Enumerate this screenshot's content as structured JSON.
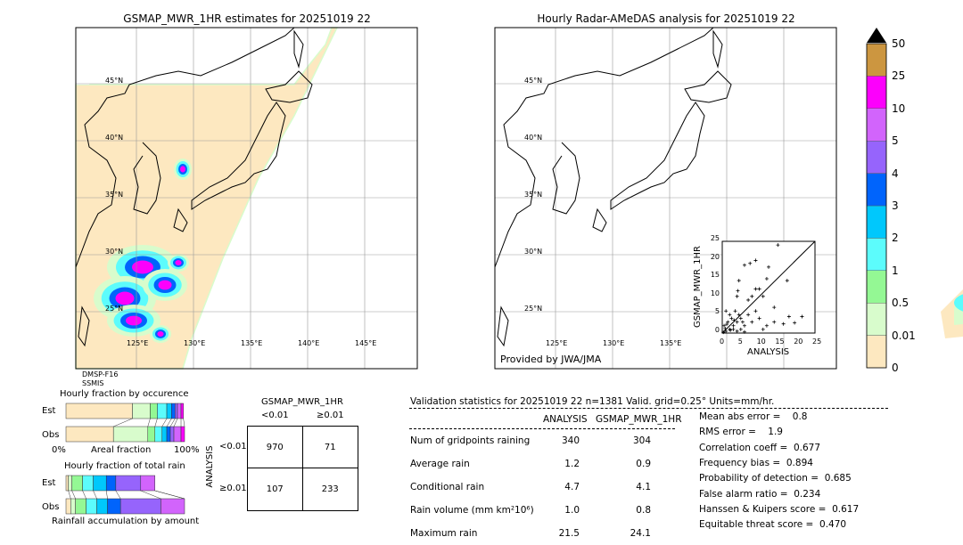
{
  "left_map": {
    "title": "GSMAP_MWR_1HR estimates for 20251019 22",
    "sensor_line1": "DMSP-F16",
    "sensor_line2": "SSMIS"
  },
  "right_map": {
    "title": "Hourly Radar-AMeDAS analysis for 20251019 22",
    "credit": "Provided by JWA/JMA"
  },
  "lat_labels": [
    "45°N",
    "40°N",
    "35°N",
    "30°N",
    "25°N"
  ],
  "lon_labels": [
    "125°E",
    "130°E",
    "135°E",
    "140°E",
    "145°E"
  ],
  "colorbar": {
    "ticks": [
      "0",
      "0.01",
      "0.5",
      "1",
      "2",
      "3",
      "4",
      "5",
      "10",
      "25",
      "50"
    ],
    "colors": [
      "#fde8c0",
      "#d8fccc",
      "#94f894",
      "#5cfcfc",
      "#00c8fc",
      "#0064fc",
      "#9664fc",
      "#d264fc",
      "#fc00fc",
      "#cc9640"
    ],
    "over_color": "#000000"
  },
  "chart_data": [
    {
      "type": "scatter",
      "xlabel": "ANALYSIS",
      "ylabel": "GSMAP_MWR_1HR",
      "xlim": [
        0,
        25
      ],
      "ylim": [
        0,
        25
      ],
      "ticks": [
        "0",
        "5",
        "10",
        "15",
        "20",
        "25"
      ],
      "points": [
        [
          15,
          24
        ],
        [
          9,
          19.8
        ],
        [
          7.5,
          19
        ],
        [
          6,
          18.5
        ],
        [
          12.5,
          18
        ],
        [
          12,
          14.8
        ],
        [
          17.5,
          14.3
        ],
        [
          4.5,
          14.3
        ],
        [
          4.2,
          11.5
        ],
        [
          9,
          12
        ],
        [
          10,
          12
        ],
        [
          8,
          10
        ],
        [
          11,
          10
        ],
        [
          4,
          10
        ],
        [
          7,
          9
        ],
        [
          14,
          7
        ],
        [
          18,
          4.5
        ],
        [
          21.5,
          4.5
        ],
        [
          19.5,
          2.8
        ],
        [
          16.5,
          2.5
        ],
        [
          14,
          3
        ],
        [
          12,
          2
        ],
        [
          11,
          1
        ],
        [
          10,
          4
        ],
        [
          9,
          6
        ],
        [
          8,
          3
        ],
        [
          7,
          5
        ],
        [
          6,
          2
        ],
        [
          5,
          4
        ],
        [
          4,
          3
        ],
        [
          3,
          2
        ],
        [
          2,
          1
        ],
        [
          1,
          0.5
        ],
        [
          0.5,
          2
        ],
        [
          1.5,
          3
        ],
        [
          2.5,
          4
        ],
        [
          3.5,
          6
        ],
        [
          2,
          5
        ],
        [
          1,
          6
        ],
        [
          3,
          1
        ],
        [
          4,
          0.5
        ],
        [
          5,
          1
        ],
        [
          6,
          0.3
        ],
        [
          0.3,
          0.2
        ],
        [
          0.8,
          1.2
        ],
        [
          1.2,
          2.4
        ],
        [
          2.2,
          0.8
        ],
        [
          3.2,
          3.5
        ],
        [
          4.5,
          5
        ],
        [
          5.5,
          3
        ]
      ]
    },
    {
      "type": "bar",
      "title": "Hourly fraction by occurence",
      "xlabel": "Areal fraction",
      "x_ticks": [
        "0%",
        "100%"
      ],
      "categories": [
        "Est",
        "Obs"
      ],
      "segments": {
        "Est": [
          0.56,
          0.15,
          0.06,
          0.08,
          0.04,
          0.03,
          0.02,
          0.03,
          0.02
        ],
        "Obs": [
          0.4,
          0.29,
          0.06,
          0.06,
          0.04,
          0.03,
          0.03,
          0.06,
          0.03
        ]
      }
    },
    {
      "type": "bar",
      "title": "Hourly fraction of total rain",
      "xlabel": "Rainfall accumulation by amount",
      "categories": [
        "Est",
        "Obs"
      ],
      "segments": {
        "Est": [
          0.02,
          0.03,
          0.09,
          0.09,
          0.11,
          0.08,
          0.21,
          0.12,
          0
        ],
        "Obs": [
          0.04,
          0.04,
          0.09,
          0.09,
          0.09,
          0.11,
          0.34,
          0.2,
          0
        ]
      }
    }
  ],
  "contingency": {
    "title": "GSMAP_MWR_1HR",
    "col_labels": [
      "<0.01",
      "≥0.01"
    ],
    "row_axis": "ANALYSIS",
    "row_labels": [
      "<0.01",
      "≥0.01"
    ],
    "cells": [
      [
        "970",
        "71"
      ],
      [
        "107",
        "233"
      ]
    ]
  },
  "stats": {
    "header": "Validation statistics for 20251019 22  n=1381 Valid. grid=0.25° Units=mm/hr.",
    "col_analysis": "ANALYSIS",
    "col_gsmap": "GSMAP_MWR_1HR",
    "rows": [
      {
        "label": "Num of gridpoints raining",
        "a": "340",
        "g": "304"
      },
      {
        "label": "Average rain",
        "a": "1.2",
        "g": "0.9"
      },
      {
        "label": "Conditional rain",
        "a": "4.7",
        "g": "4.1"
      },
      {
        "label": "Rain volume (mm km²10⁶)",
        "a": "1.0",
        "g": "0.8"
      },
      {
        "label": "Maximum rain",
        "a": "21.5",
        "g": "24.1"
      }
    ],
    "scores": [
      "Mean abs error =    0.8",
      "RMS error =    1.9",
      "Correlation coeff =  0.677",
      "Frequency bias =  0.894",
      "Probability of detection =  0.685",
      "False alarm ratio =  0.234",
      "Hanssen & Kuipers score =  0.617",
      "Equitable threat score =  0.470"
    ]
  }
}
